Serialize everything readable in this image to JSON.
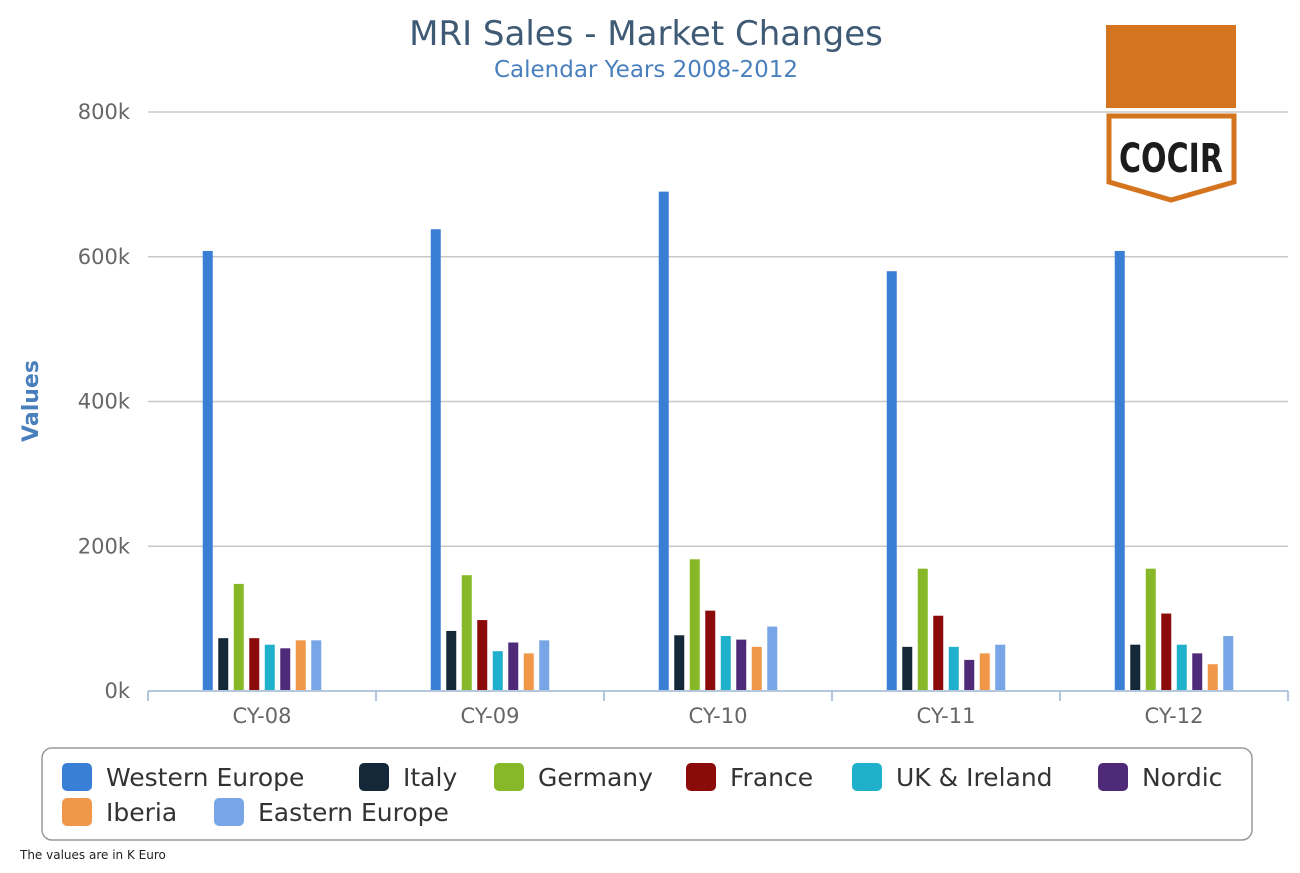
{
  "logo": {
    "text": "COCIR"
  },
  "footnote": "The values are in K Euro",
  "chart_data": {
    "type": "bar",
    "title": "MRI Sales - Market Changes",
    "subtitle": "Calendar Years 2008-2012",
    "xlabel": "",
    "ylabel": "Values",
    "ylim": [
      0,
      800000
    ],
    "yticks": [
      0,
      200000,
      400000,
      600000,
      800000
    ],
    "ytick_labels": [
      "0k",
      "200k",
      "400k",
      "600k",
      "800k"
    ],
    "grid": true,
    "legend_position": "bottom",
    "categories": [
      "CY-08",
      "CY-09",
      "CY-10",
      "CY-11",
      "CY-12"
    ],
    "series": [
      {
        "name": "Western Europe",
        "color": "#3a7fd6",
        "values": [
          608000,
          638000,
          690000,
          580000,
          608000
        ]
      },
      {
        "name": "Italy",
        "color": "#14283a",
        "values": [
          73000,
          83000,
          77000,
          61000,
          64000
        ]
      },
      {
        "name": "Germany",
        "color": "#86b827",
        "values": [
          148000,
          160000,
          182000,
          169000,
          169000
        ]
      },
      {
        "name": "France",
        "color": "#8b0b0b",
        "values": [
          73000,
          98000,
          111000,
          104000,
          107000
        ]
      },
      {
        "name": "UK & Ireland",
        "color": "#1fb0cc",
        "values": [
          64000,
          55000,
          76000,
          61000,
          64000
        ]
      },
      {
        "name": "Nordic",
        "color": "#4e2a78",
        "values": [
          59000,
          67000,
          71000,
          43000,
          52000
        ]
      },
      {
        "name": "Iberia",
        "color": "#f0974a",
        "values": [
          70000,
          52000,
          61000,
          52000,
          37000
        ]
      },
      {
        "name": "Eastern Europe",
        "color": "#77a5e6",
        "values": [
          70000,
          70000,
          89000,
          64000,
          76000
        ]
      }
    ]
  }
}
